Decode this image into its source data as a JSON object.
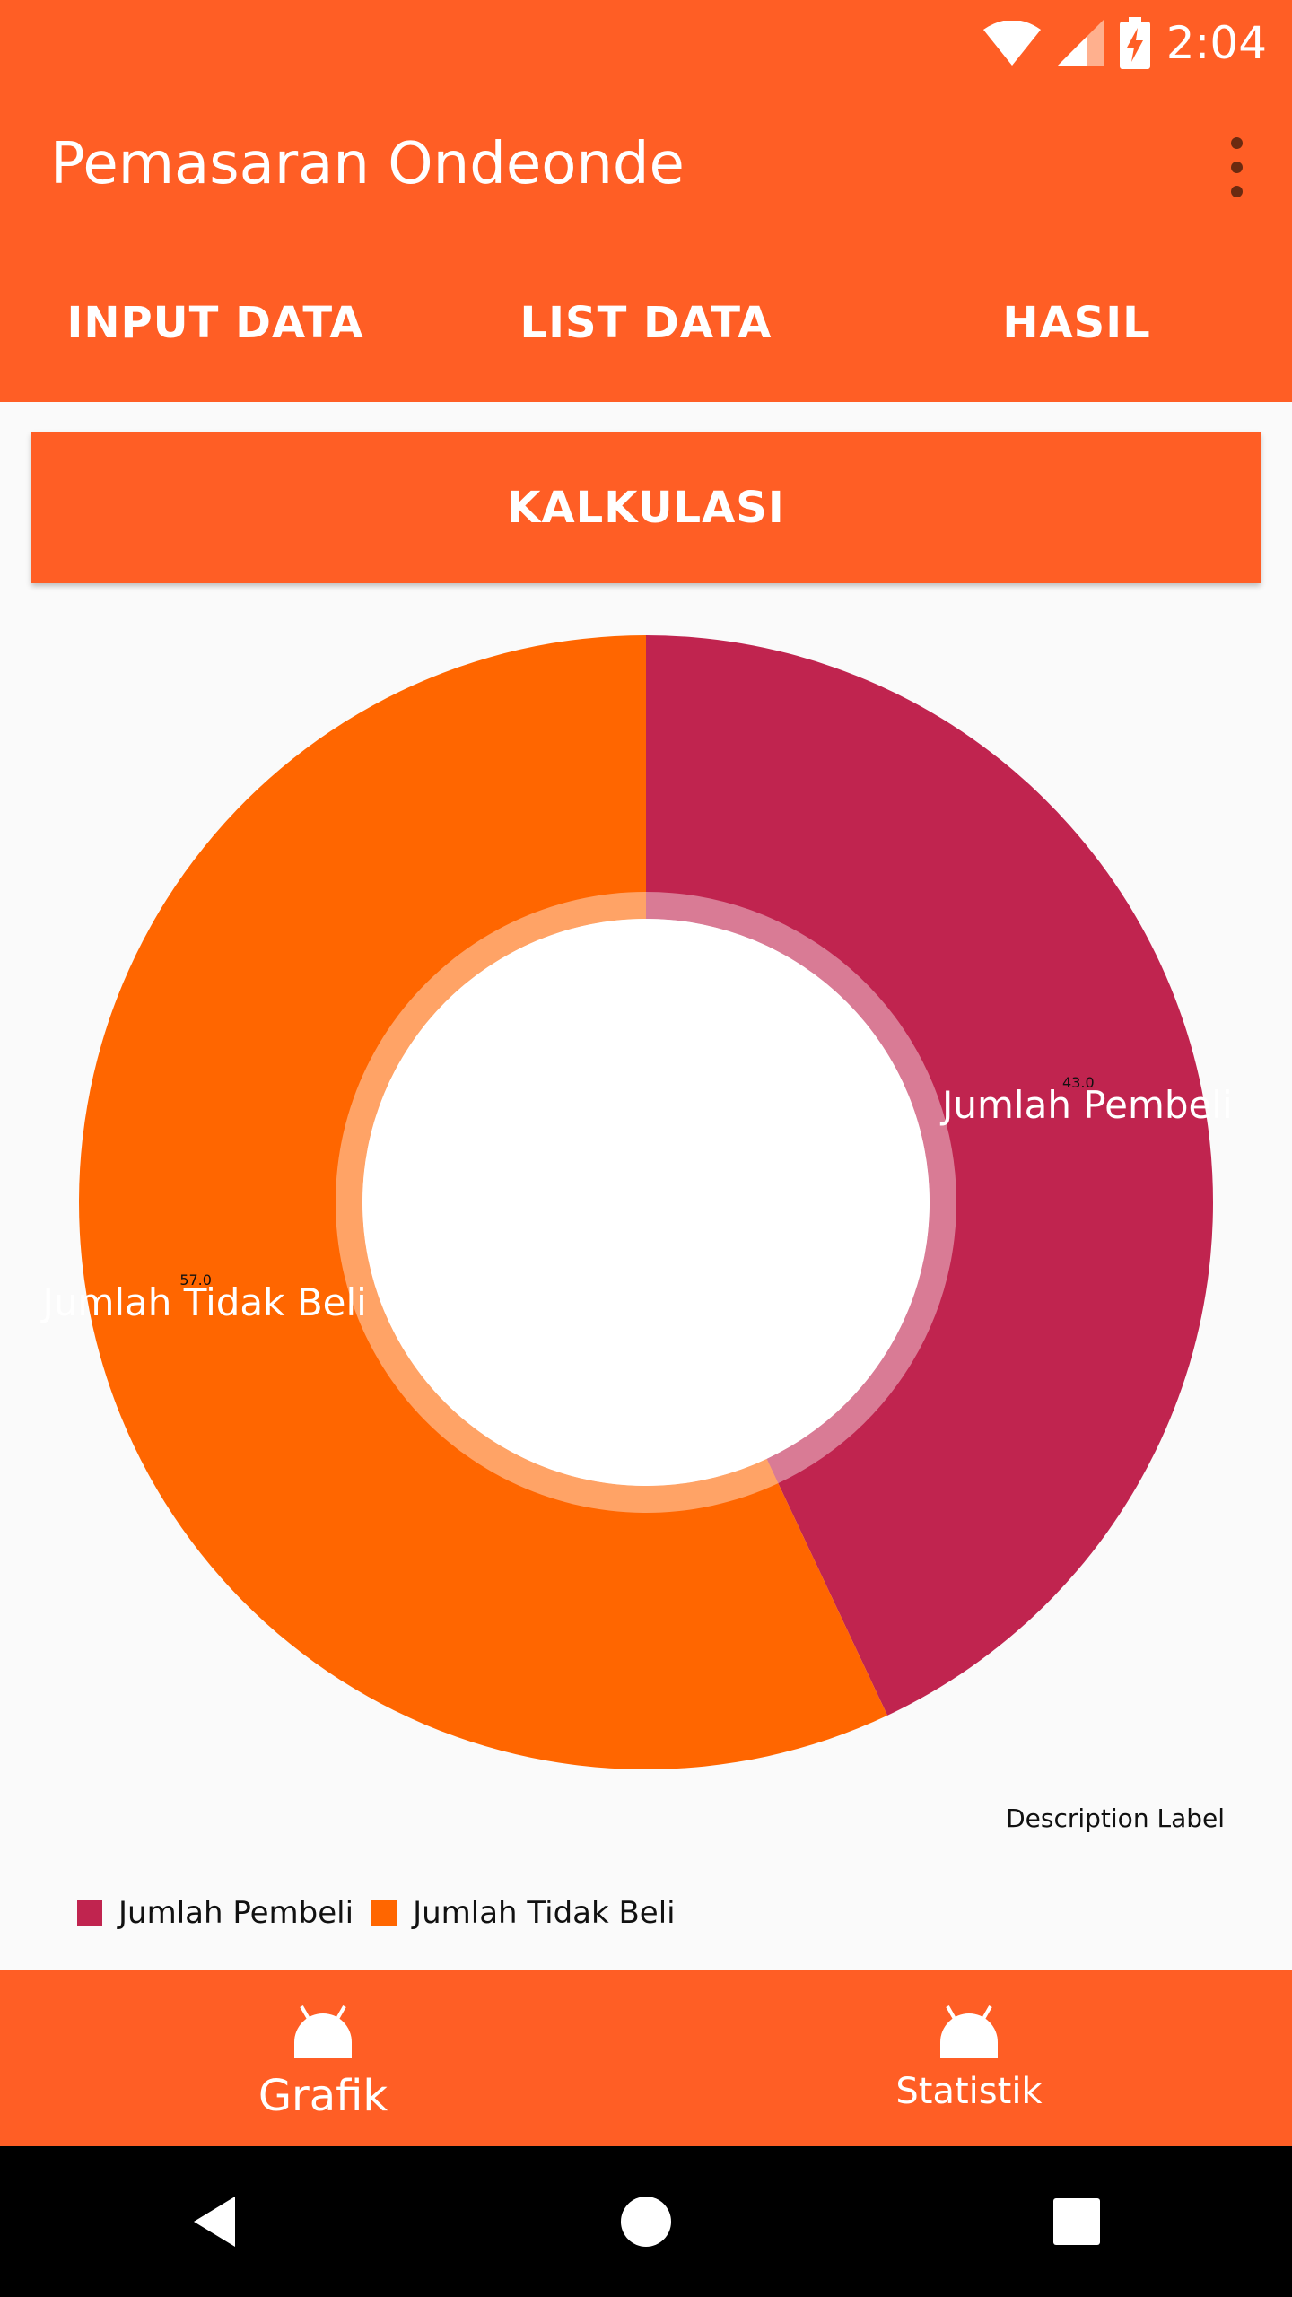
{
  "status_bar": {
    "time": "2:04"
  },
  "app_bar": {
    "title": "Pemasaran Ondeonde"
  },
  "tabs": [
    {
      "label": "INPUT DATA"
    },
    {
      "label": "LIST DATA"
    },
    {
      "label": "HASIL"
    }
  ],
  "calc_button": {
    "label": "KALKULASI"
  },
  "chart_data": {
    "type": "pie",
    "style": "donut",
    "slices": [
      {
        "label": "Jumlah Pembeli",
        "value": 43.0,
        "value_label": "43.0",
        "color": "#C0244F"
      },
      {
        "label": "Jumlah Tidak Beli",
        "value": 57.0,
        "value_label": "57.0",
        "color": "#FF6600"
      }
    ],
    "description": "Description Label",
    "legend": [
      "Jumlah Pembeli",
      "Jumlah Tidak Beli"
    ],
    "legend_position": "bottom-left"
  },
  "bottom_nav": [
    {
      "label": "Grafik"
    },
    {
      "label": "Statistik"
    }
  ],
  "colors": {
    "primary": "#FF5E25",
    "slice_1": "#C0244F",
    "slice_2": "#FF6600"
  }
}
